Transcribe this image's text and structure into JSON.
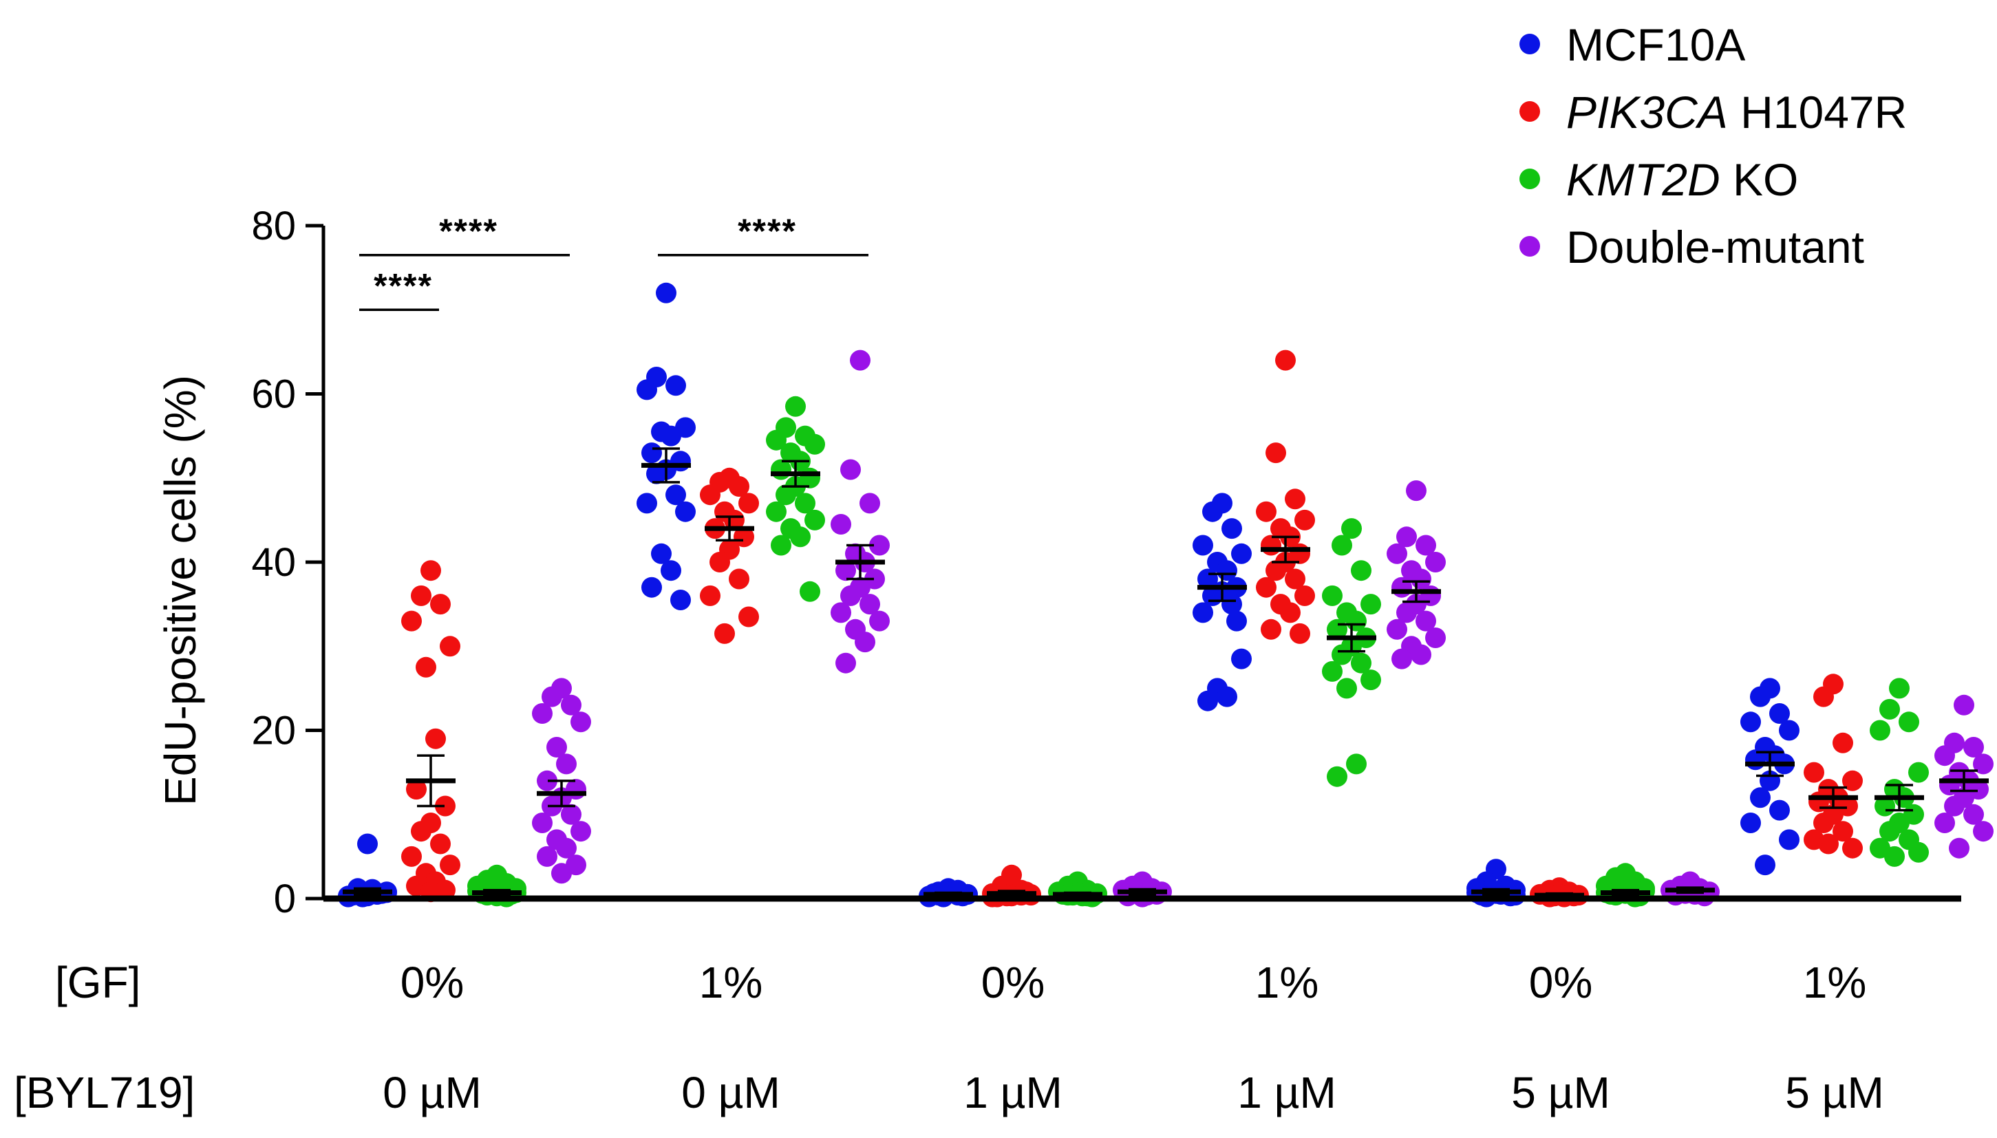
{
  "chart_data": {
    "type": "scatter",
    "ylabel": "EdU-positive cells (%)",
    "ylim": [
      0,
      80
    ],
    "yticks": [
      0,
      20,
      40,
      60,
      80
    ],
    "row_labels": {
      "gf": "[GF]",
      "byl": "[BYL719]"
    },
    "conditions": [
      {
        "gf": "0%",
        "byl": "0 µM"
      },
      {
        "gf": "1%",
        "byl": "0 µM"
      },
      {
        "gf": "0%",
        "byl": "1 µM"
      },
      {
        "gf": "1%",
        "byl": "1 µM"
      },
      {
        "gf": "0%",
        "byl": "5 µM"
      },
      {
        "gf": "1%",
        "byl": "5 µM"
      }
    ],
    "legend": {
      "placement": "top-right"
    },
    "series": [
      {
        "name": "MCF10A",
        "name_italic": "",
        "name_rest": "MCF10A",
        "color": "#0a14e6",
        "means": [
          0.8,
          51.5,
          0.5,
          37,
          0.8,
          16
        ],
        "sem": [
          0.4,
          2.0,
          0.2,
          1.6,
          0.3,
          1.4
        ],
        "points": [
          [
            6.5,
            1.2,
            0.5,
            0.3,
            0.8,
            0.2,
            1.0,
            0.4,
            0.6,
            0.3,
            0.9,
            0.5,
            0.2,
            0.7,
            0.4,
            1.1
          ],
          [
            72,
            62,
            61,
            60.5,
            56,
            55.5,
            55,
            53,
            52,
            51,
            50.5,
            48,
            47,
            46,
            41,
            39,
            37,
            35.5
          ],
          [
            1.2,
            0.8,
            0.4,
            0.3,
            0.5,
            0.2,
            0.9,
            0.6,
            0.3,
            0.7,
            0.4,
            1.0,
            0.2,
            0.5
          ],
          [
            47,
            46,
            44,
            42,
            41,
            40,
            39,
            38,
            37,
            36.5,
            36,
            35,
            34,
            28.5,
            25,
            24,
            23.5,
            33
          ],
          [
            3.5,
            2,
            1.5,
            1.2,
            1,
            0.8,
            0.5,
            0.4,
            0.3,
            0.6,
            0.2,
            0.9,
            0.7,
            0.4
          ],
          [
            25,
            24,
            22,
            21,
            20,
            18,
            17,
            16.5,
            16,
            14,
            12,
            10.5,
            9,
            7,
            4
          ]
        ]
      },
      {
        "name": "PIK3CA H1047R",
        "name_italic": "PIK3CA",
        "name_rest": " H1047R",
        "color": "#f01010",
        "means": [
          14,
          44,
          0.6,
          41.5,
          0.4,
          12
        ],
        "sem": [
          3.0,
          1.4,
          0.3,
          1.5,
          0.2,
          1.2
        ],
        "points": [
          [
            39,
            36,
            35,
            33,
            30,
            27.5,
            19,
            13,
            11,
            9,
            8,
            6.5,
            5,
            4,
            3,
            2,
            1.5,
            1,
            0.8
          ],
          [
            50,
            49.5,
            49,
            48,
            47,
            46,
            45,
            44,
            43,
            41.5,
            40,
            38,
            36,
            33.5,
            31.5
          ],
          [
            2.8,
            1.5,
            1,
            0.6,
            0.4,
            0.3,
            0.5,
            0.2,
            0.8,
            0.3,
            0.6,
            0.4,
            0.2,
            0.5
          ],
          [
            64,
            53,
            47.5,
            46,
            45,
            44,
            43,
            42,
            41,
            40,
            39,
            38,
            37,
            36,
            35,
            34,
            32,
            31.5
          ],
          [
            1.3,
            1,
            0.8,
            0.5,
            0.4,
            0.3,
            0.2,
            0.6,
            0.3,
            0.5,
            0.2,
            0.4
          ],
          [
            25.5,
            24,
            18.5,
            15,
            14,
            13,
            12,
            11.5,
            11,
            10,
            9,
            8,
            7,
            6,
            6.5
          ]
        ]
      },
      {
        "name": "KMT2D KO",
        "name_italic": "KMT2D",
        "name_rest": " KO",
        "color": "#12c412",
        "means": [
          0.7,
          50.5,
          0.5,
          31,
          0.7,
          12
        ],
        "sem": [
          0.3,
          1.5,
          0.2,
          1.6,
          0.3,
          1.5
        ],
        "points": [
          [
            2.8,
            2.2,
            1.8,
            1.5,
            1.2,
            1,
            0.8,
            0.6,
            0.5,
            0.3,
            0.4,
            0.2,
            0.9,
            0.7
          ],
          [
            58.5,
            56,
            55,
            54.5,
            54,
            53,
            52,
            51,
            50,
            49,
            48,
            47,
            46,
            45,
            44,
            43,
            42,
            36.5
          ],
          [
            2,
            1.5,
            1,
            0.8,
            0.6,
            0.4,
            0.3,
            0.5,
            0.2,
            0.7,
            0.4,
            0.3
          ],
          [
            44,
            42,
            39,
            36,
            35,
            34,
            33,
            32,
            31,
            30,
            29,
            28,
            27,
            26,
            25,
            16,
            14.5
          ],
          [
            3,
            2.5,
            2,
            1.5,
            1.2,
            1,
            0.8,
            0.5,
            0.3,
            0.6,
            0.4,
            0.2,
            0.7,
            0.9
          ],
          [
            25,
            22.5,
            21,
            20,
            15,
            13,
            12,
            11,
            10,
            9,
            8,
            7,
            6,
            5.5,
            5
          ]
        ]
      },
      {
        "name": "Double-mutant",
        "name_italic": "",
        "name_rest": "Double-mutant",
        "color": "#9a12e8",
        "means": [
          12.5,
          40,
          0.8,
          36.5,
          1.0,
          14
        ],
        "sem": [
          1.5,
          2.0,
          0.3,
          1.2,
          0.3,
          1.2
        ],
        "points": [
          [
            25,
            24,
            23,
            22,
            21,
            18,
            16,
            14,
            13,
            12,
            11,
            10,
            9,
            8,
            7,
            6,
            5,
            4,
            3
          ],
          [
            64,
            51,
            47,
            44.5,
            42,
            41,
            40,
            39,
            38,
            37,
            36,
            35,
            34,
            33,
            32,
            30.5,
            28
          ],
          [
            2,
            1.5,
            1.2,
            1,
            0.8,
            0.6,
            0.4,
            0.3,
            0.5,
            0.2,
            0.7,
            0.9
          ],
          [
            48.5,
            43,
            42,
            41,
            40,
            39,
            38,
            37,
            36,
            35,
            34,
            33,
            32,
            31,
            30,
            29,
            28.5
          ],
          [
            2,
            1.5,
            1.2,
            1,
            0.8,
            0.6,
            0.5,
            0.4,
            0.3,
            0.7
          ],
          [
            23,
            18.5,
            18,
            17,
            16,
            15,
            14,
            13.5,
            13,
            12,
            11,
            10,
            9,
            8,
            6
          ]
        ]
      }
    ],
    "significance": [
      {
        "label": "****",
        "from": [
          0,
          0
        ],
        "to": [
          0,
          1
        ],
        "y": 70
      },
      {
        "label": "****",
        "from": [
          0,
          0
        ],
        "to": [
          0,
          3
        ],
        "y": 76.5
      },
      {
        "label": "****",
        "from": [
          1,
          0
        ],
        "to": [
          1,
          3
        ],
        "y": 76.5
      }
    ]
  }
}
